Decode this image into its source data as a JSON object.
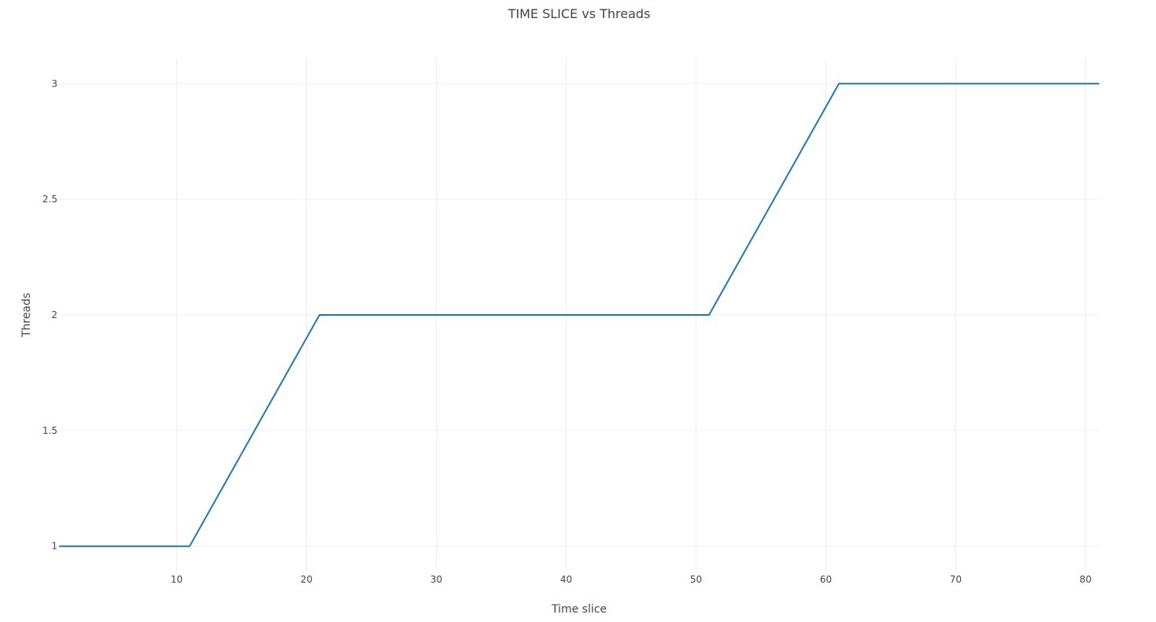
{
  "chart_data": {
    "type": "line",
    "title": "TIME SLICE vs  Threads",
    "xlabel": "Time slice",
    "ylabel": "Threads",
    "xlim": [
      1,
      81
    ],
    "ylim": [
      0.89,
      3.11
    ],
    "x_ticks": [
      10,
      20,
      30,
      40,
      50,
      60,
      70,
      80
    ],
    "y_ticks": [
      1,
      1.5,
      2,
      2.5,
      3
    ],
    "y_tick_labels": [
      "1",
      "1.5",
      "2",
      "2.5",
      "3"
    ],
    "grid": true,
    "legend": "none",
    "series": [
      {
        "color": "#1f77b4",
        "x": [
          1,
          11,
          21,
          51,
          61,
          81
        ],
        "y": [
          1,
          1,
          2,
          2,
          3,
          3
        ]
      }
    ]
  }
}
